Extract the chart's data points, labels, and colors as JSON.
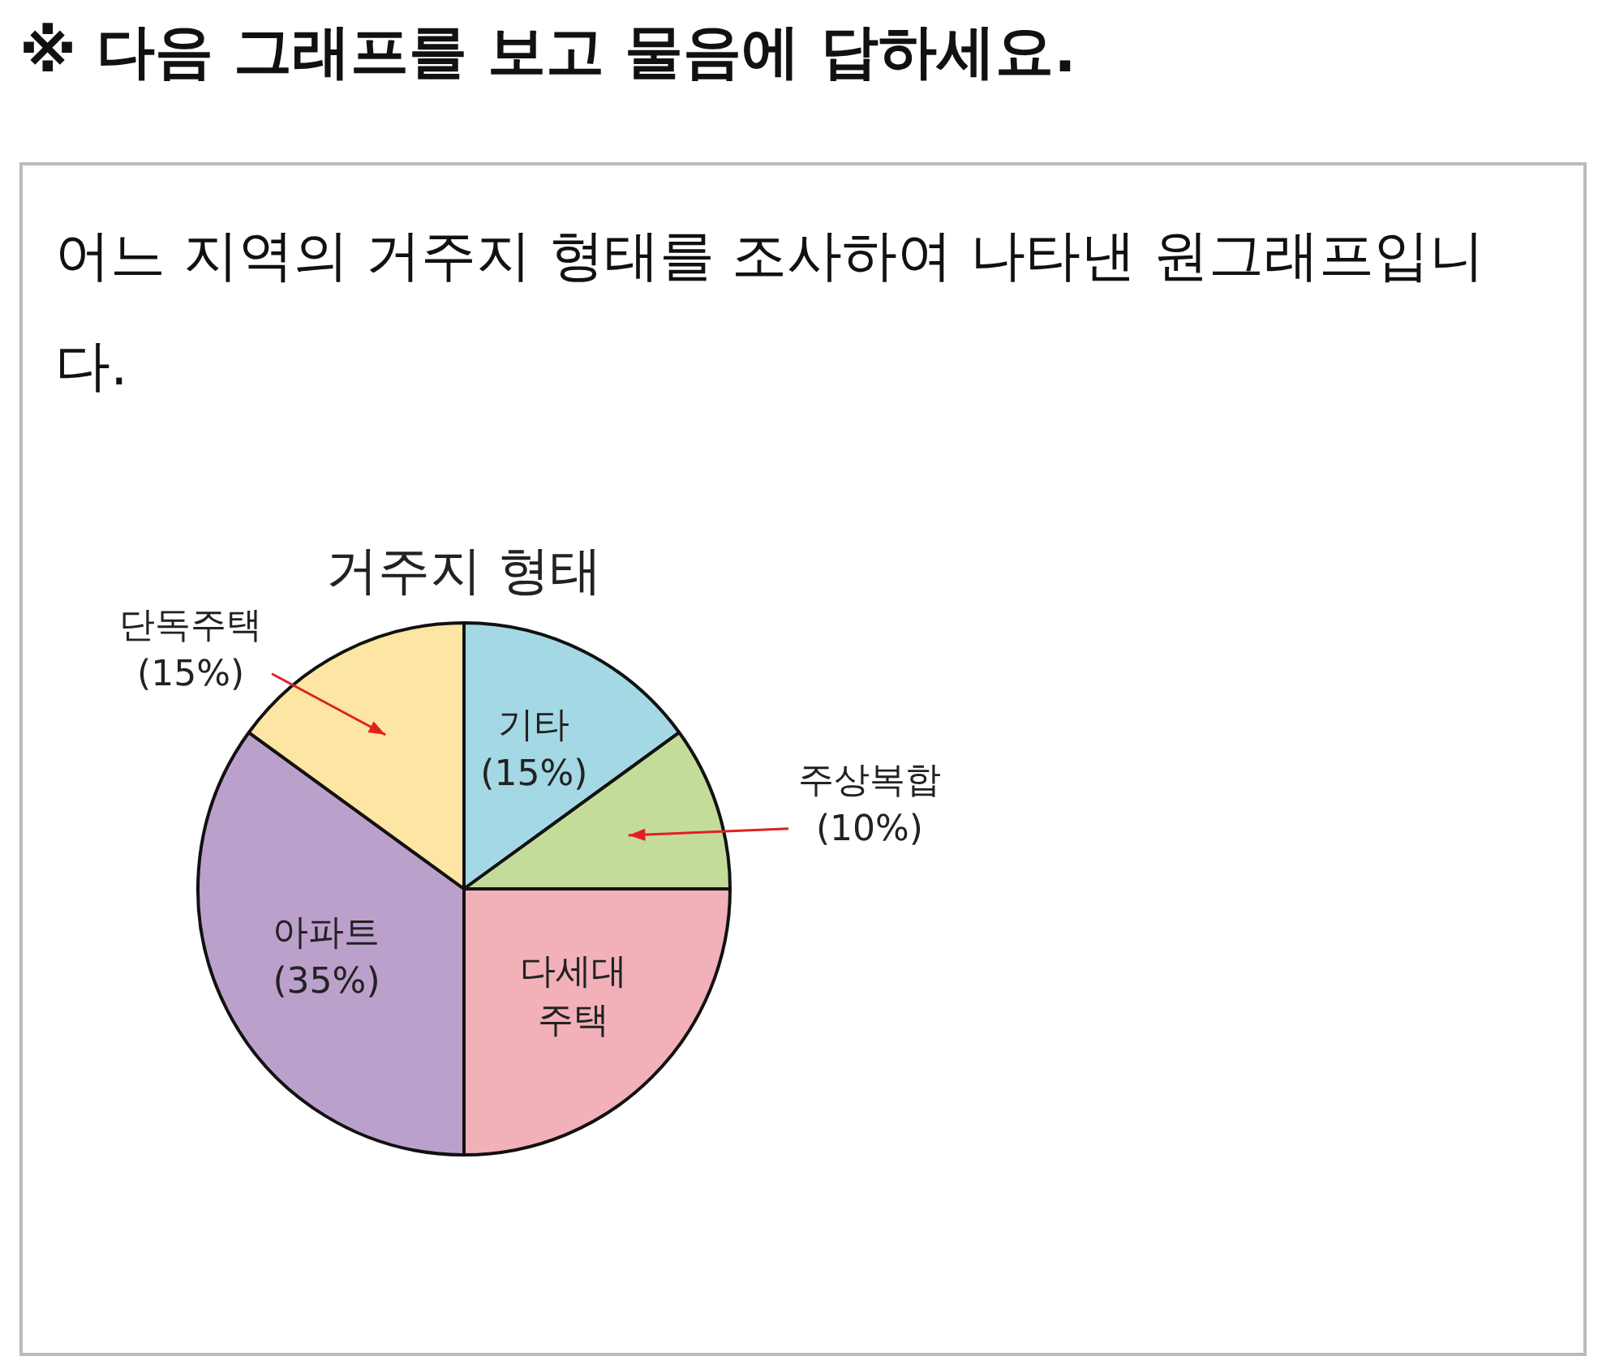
{
  "chart_data": {
    "type": "pie",
    "title": "거주지 형태",
    "subtitle": "어느 지역의 거주지 형태를 조사하여 나타낸 원그래프입니다.",
    "annotations": [
      "※ 다음 그래프를 보고 물음에 답하세요."
    ],
    "categories": [
      "기타",
      "주상복합",
      "다세대 주택",
      "아파트",
      "단독주택"
    ],
    "values": [
      15,
      10,
      25,
      35,
      15
    ],
    "value_labels": [
      "(15%)",
      "(10%)",
      null,
      "(35%)",
      "(15%)"
    ],
    "colors": [
      "#a4d8e4",
      "#c3dc9a",
      "#f2b0b8",
      "#bca0cc",
      "#fde6a4"
    ],
    "legend": false
  }
}
